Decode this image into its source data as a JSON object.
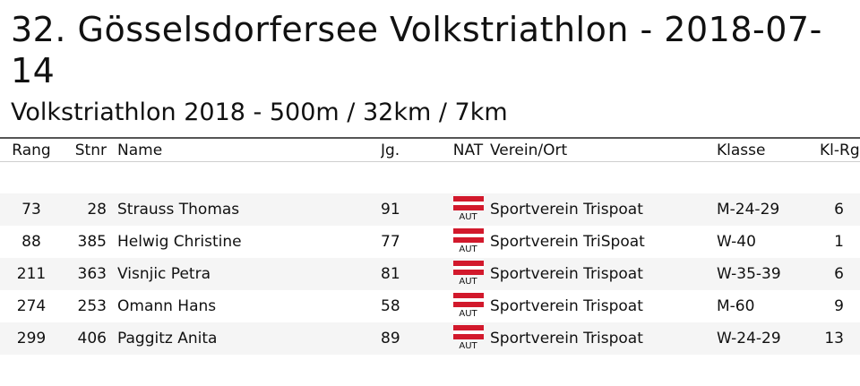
{
  "header": {
    "title": "32. Gösselsdorfersee Volkstriathlon - 2018-07-14",
    "subtitle": "Volkstriathlon 2018 - 500m / 32km / 7km"
  },
  "table": {
    "columns": {
      "rang": "Rang",
      "stnr": "Stnr",
      "name": "Name",
      "jg": "Jg.",
      "nat": "NAT",
      "verein": "Verein/Ort",
      "klasse": "Klasse",
      "klrg": "Kl-Rg."
    },
    "rows": [
      {
        "rang": "73",
        "stnr": "28",
        "name": "Strauss Thomas",
        "jg": "91",
        "nat": "AUT",
        "verein": "Sportverein Trispoat",
        "klasse": "M-24-29",
        "klrg": "6"
      },
      {
        "rang": "88",
        "stnr": "385",
        "name": "Helwig Christine",
        "jg": "77",
        "nat": "AUT",
        "verein": "Sportverein TriSpoat",
        "klasse": "W-40",
        "klrg": "1"
      },
      {
        "rang": "211",
        "stnr": "363",
        "name": "Visnjic Petra",
        "jg": "81",
        "nat": "AUT",
        "verein": "Sportverein Trispoat",
        "klasse": "W-35-39",
        "klrg": "6"
      },
      {
        "rang": "274",
        "stnr": "253",
        "name": "Omann Hans",
        "jg": "58",
        "nat": "AUT",
        "verein": "Sportverein Trispoat",
        "klasse": "M-60",
        "klrg": "9"
      },
      {
        "rang": "299",
        "stnr": "406",
        "name": "Paggitz Anita",
        "jg": "89",
        "nat": "AUT",
        "verein": "Sportverein Trispoat",
        "klasse": "W-24-29",
        "klrg": "13"
      }
    ]
  },
  "colors": {
    "flag_red": "#d2192c",
    "row_stripe": "#f5f5f5",
    "rule": "#555555"
  }
}
